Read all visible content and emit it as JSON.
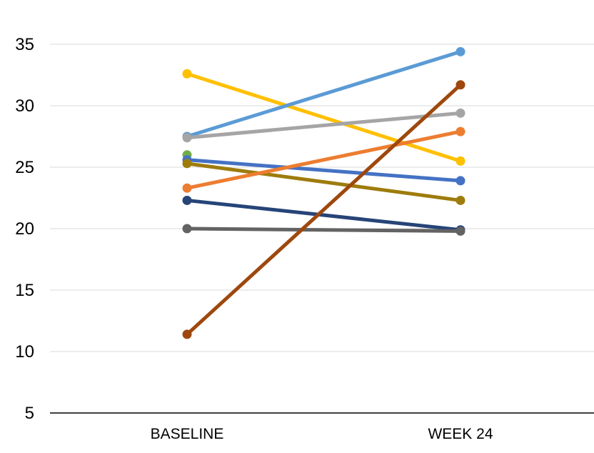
{
  "chart_data": {
    "type": "line",
    "title": "",
    "xlabel": "",
    "ylabel": "",
    "categories": [
      "BASELINE",
      "WEEK 24"
    ],
    "ylim": [
      5,
      35
    ],
    "yticks": [
      "5",
      "10",
      "15",
      "20",
      "25",
      "30",
      "35"
    ],
    "grid": true,
    "legend": "none",
    "series": [
      {
        "values": [
          32.6,
          25.5
        ],
        "color": "#FFC000"
      },
      {
        "values": [
          27.5,
          34.4
        ],
        "color": "#5B9BD5"
      },
      {
        "values": [
          27.4,
          29.4
        ],
        "color": "#A5A5A5"
      },
      {
        "values": [
          26.0,
          26.0
        ],
        "color": "#70AD47",
        "marker_only": true
      },
      {
        "values": [
          25.6,
          23.9
        ],
        "color": "#4472C4"
      },
      {
        "values": [
          25.3,
          22.3
        ],
        "color": "#9E7C0C"
      },
      {
        "values": [
          23.3,
          27.9
        ],
        "color": "#ED7D31"
      },
      {
        "values": [
          22.3,
          19.9
        ],
        "color": "#264478"
      },
      {
        "values": [
          20.0,
          19.8
        ],
        "color": "#636363"
      },
      {
        "values": [
          11.4,
          31.7
        ],
        "color": "#9E480E"
      }
    ]
  }
}
